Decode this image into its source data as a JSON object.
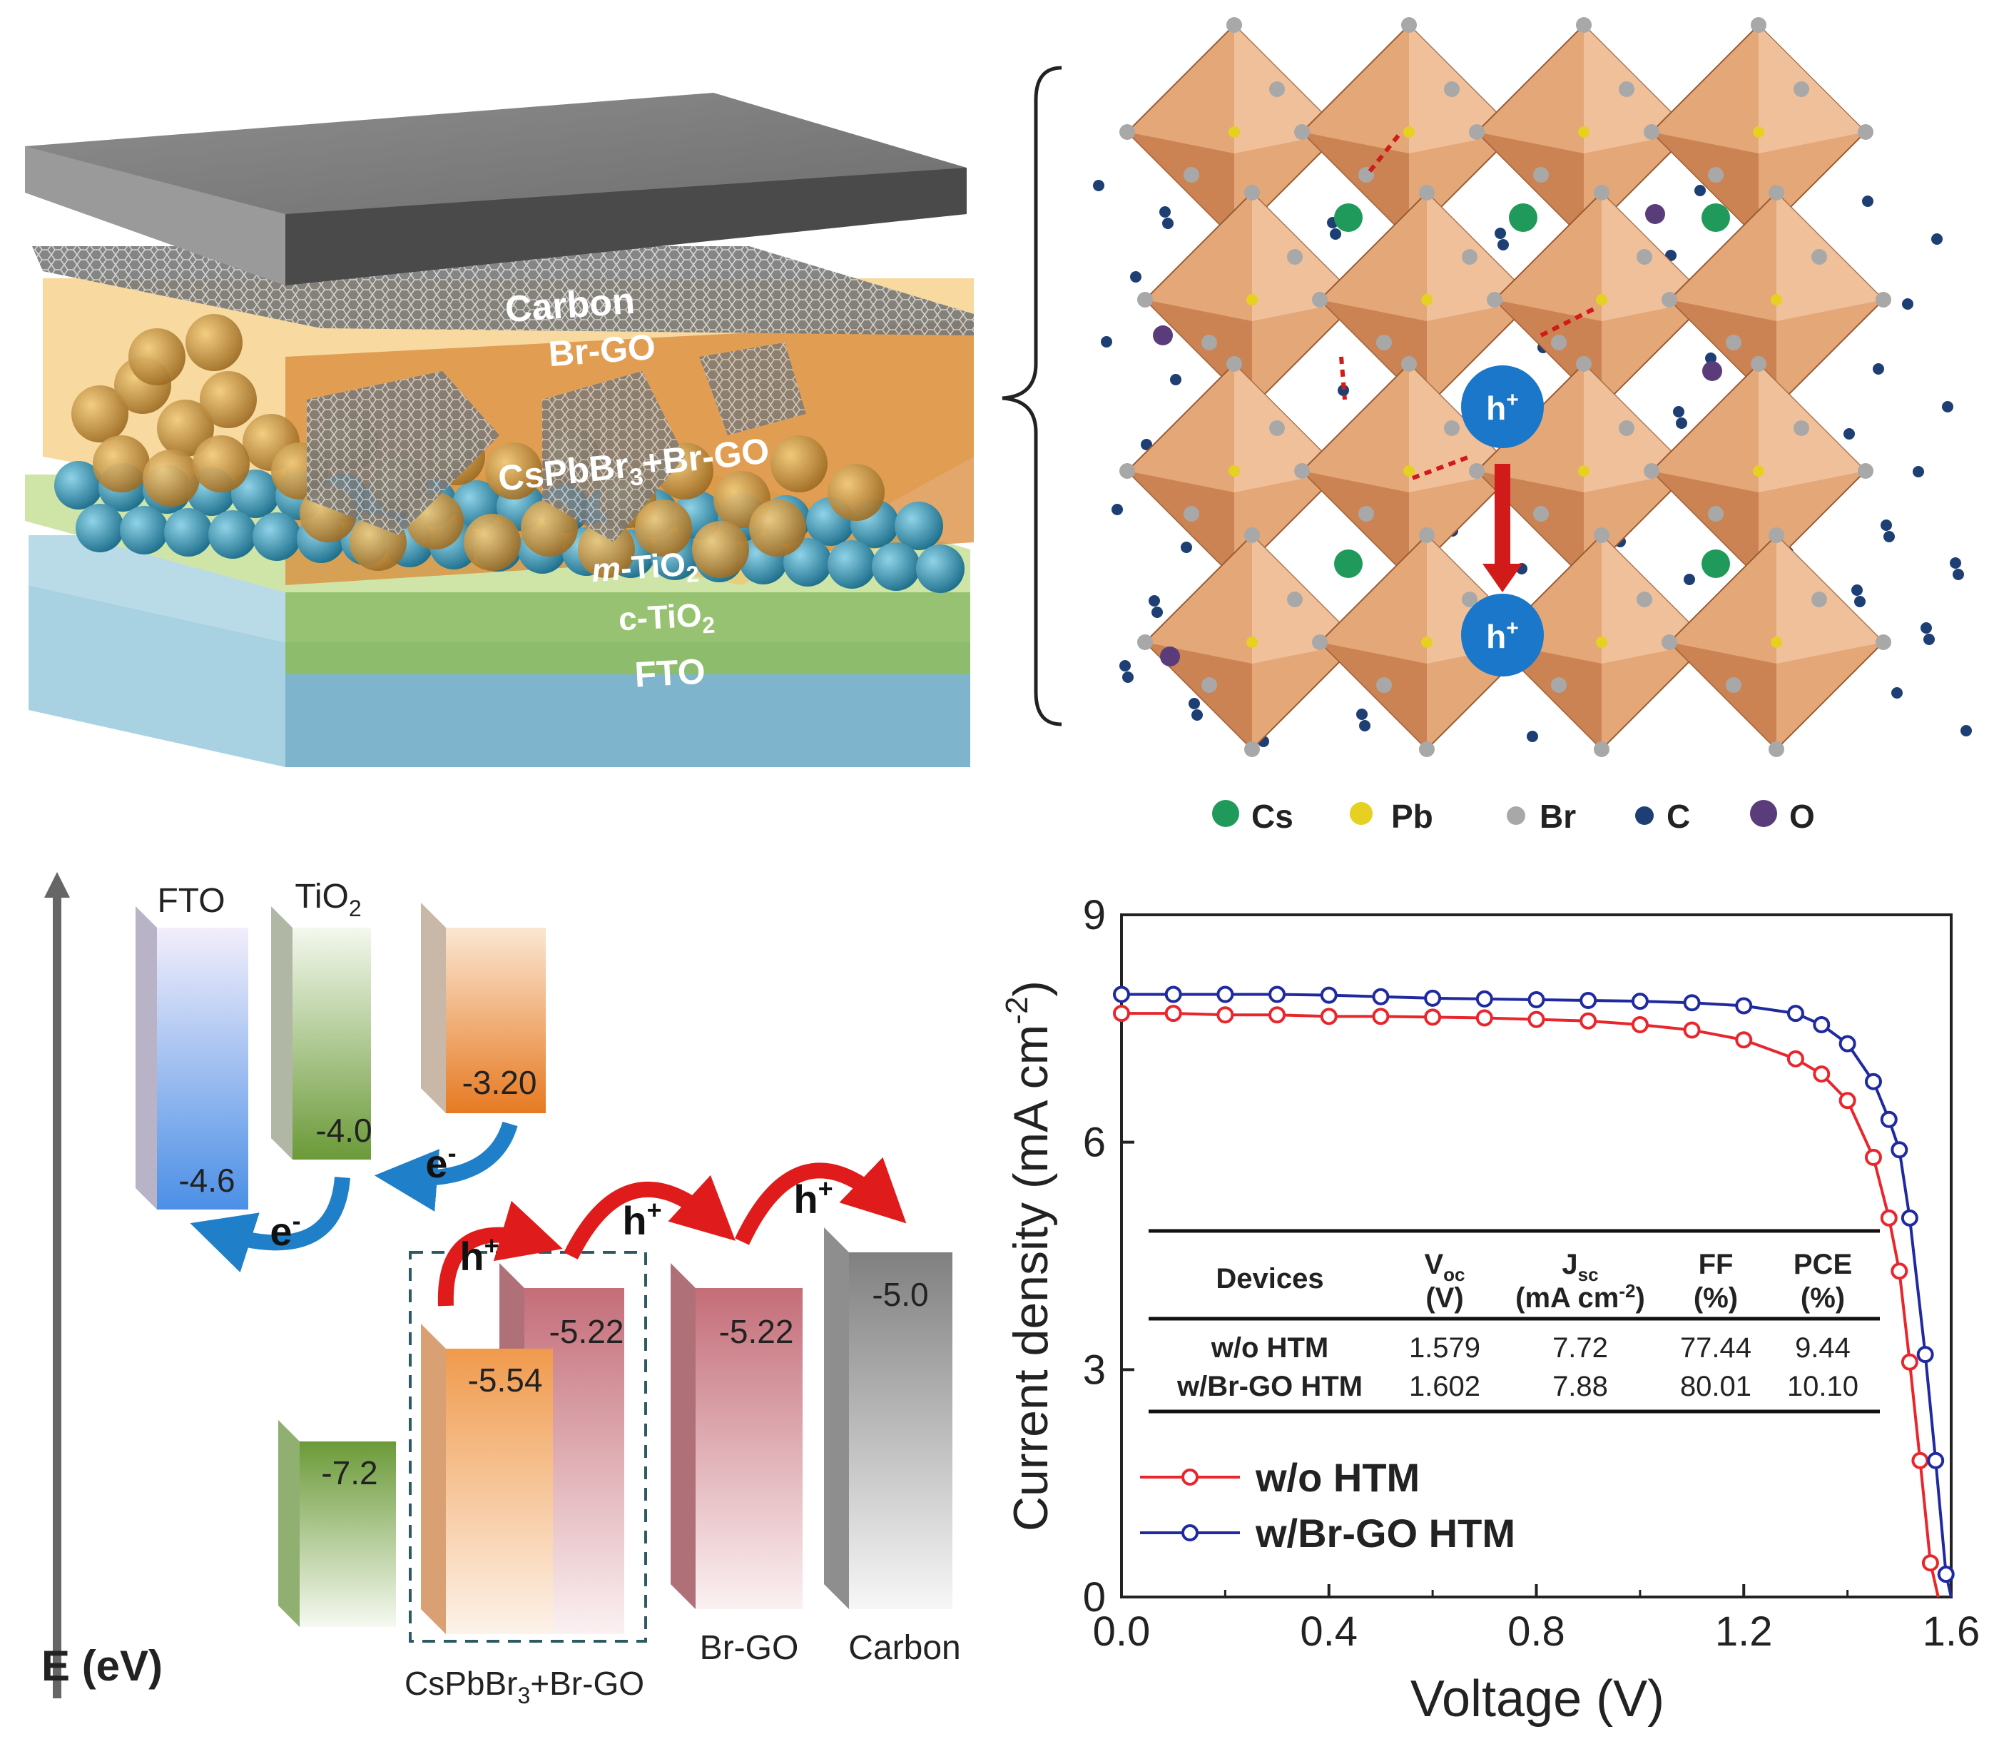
{
  "device_stack": {
    "layers": [
      "Carbon",
      "Br-GO",
      "CsPbBr3+Br-GO",
      "m-TiO2",
      "c-TiO2",
      "FTO"
    ],
    "colors": {
      "carbon": "#5e5e5e",
      "perovskite": "#e69a50",
      "tio2": "#8bbd6a",
      "fto": "#7fb8cf",
      "sphere_blue": "#2a8aa8",
      "sphere_gold": "#b8873a"
    }
  },
  "crystal": {
    "hole_label": "h+",
    "legend": [
      {
        "label": "Cs",
        "color": "#1f9a5a"
      },
      {
        "label": "Pb",
        "color": "#e6d020"
      },
      {
        "label": "Br",
        "color": "#a8a8a8"
      },
      {
        "label": "C",
        "color": "#1d3f73"
      },
      {
        "label": "O",
        "color": "#5a3c7a"
      }
    ]
  },
  "energy_diagram": {
    "axis_label": "E (eV)",
    "bars": [
      {
        "name": "FTO",
        "value": "-4.6",
        "color": "#5a9fe8"
      },
      {
        "name": "TiO2",
        "value": "-4.0",
        "color": "#6e9a3c"
      },
      {
        "name": "TiO2 VB",
        "value": "-7.2",
        "color": "#6e9a3c"
      },
      {
        "name": "CsPbBr3 CB",
        "value": "-3.20",
        "color": "#e6802a"
      },
      {
        "name": "CsPbBr3 VB",
        "value": "-5.54",
        "color": "#f0a458"
      },
      {
        "name": "Br-GO in film",
        "value": "-5.22",
        "color": "#c9747e"
      },
      {
        "name": "Br-GO",
        "value": "-5.22",
        "color": "#c9747e"
      },
      {
        "name": "Carbon",
        "value": "-5.0",
        "color": "#8a8a8a"
      }
    ],
    "labels": {
      "fto": "FTO",
      "tio2": "TiO",
      "tio2_sub": "2",
      "composite": "CsPbBr",
      "composite_sub": "3",
      "composite_tail": "+Br-GO",
      "brgo": "Br-GO",
      "carbon": "Carbon"
    },
    "arrows": {
      "electron": "e",
      "hole": "h",
      "electron_sign": "-",
      "hole_sign": "+"
    }
  },
  "chart_data": {
    "type": "line",
    "title": "",
    "xlabel": "Voltage (V)",
    "ylabel": "Current density (mA cm",
    "ylabel_sup": "-2",
    "ylabel_tail": ")",
    "xlim": [
      0.0,
      1.6
    ],
    "ylim": [
      0,
      9
    ],
    "xticks": [
      "0.0",
      "0.4",
      "0.8",
      "1.2",
      "1.6"
    ],
    "yticks": [
      "0",
      "3",
      "6",
      "9"
    ],
    "series": [
      {
        "name": "w/o HTM",
        "color": "#e8262c",
        "x": [
          0.0,
          0.1,
          0.2,
          0.3,
          0.4,
          0.5,
          0.6,
          0.7,
          0.8,
          0.9,
          1.0,
          1.1,
          1.2,
          1.3,
          1.35,
          1.4,
          1.45,
          1.48,
          1.5,
          1.52,
          1.54,
          1.56,
          1.575
        ],
        "y": [
          7.7,
          7.7,
          7.68,
          7.68,
          7.66,
          7.66,
          7.65,
          7.64,
          7.62,
          7.6,
          7.55,
          7.48,
          7.35,
          7.1,
          6.9,
          6.55,
          5.8,
          5.0,
          4.3,
          3.1,
          1.8,
          0.45,
          0.0
        ]
      },
      {
        "name": "w/Br-GO HTM",
        "color": "#1f2aa0",
        "x": [
          0.0,
          0.1,
          0.2,
          0.3,
          0.4,
          0.5,
          0.6,
          0.7,
          0.8,
          0.9,
          1.0,
          1.1,
          1.2,
          1.3,
          1.35,
          1.4,
          1.45,
          1.48,
          1.5,
          1.52,
          1.55,
          1.57,
          1.59,
          1.6
        ],
        "y": [
          7.95,
          7.95,
          7.95,
          7.95,
          7.94,
          7.92,
          7.9,
          7.89,
          7.88,
          7.87,
          7.86,
          7.84,
          7.8,
          7.7,
          7.55,
          7.3,
          6.8,
          6.3,
          5.9,
          5.0,
          3.2,
          1.8,
          0.3,
          0.0
        ]
      }
    ],
    "table": {
      "headers": [
        {
          "main": "Devices",
          "sub": ""
        },
        {
          "main": "V",
          "main_sub": "oc",
          "sub": "(V)"
        },
        {
          "main": "J",
          "main_sub": "sc",
          "sub": "(mA cm",
          "sub_sup": "-2",
          "sub_tail": ")"
        },
        {
          "main": "FF",
          "sub": "(%)"
        },
        {
          "main": "PCE",
          "sub": "(%)"
        }
      ],
      "rows": [
        [
          "w/o HTM",
          "1.579",
          "7.72",
          "77.44",
          "9.44"
        ],
        [
          "w/Br-GO HTM",
          "1.602",
          "7.88",
          "80.01",
          "10.10"
        ]
      ]
    },
    "legend": [
      "w/o HTM",
      "w/Br-GO HTM"
    ]
  }
}
